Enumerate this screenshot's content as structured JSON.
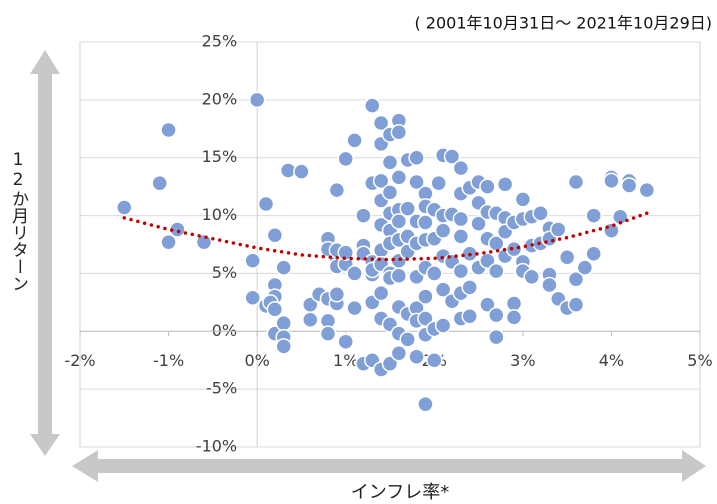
{
  "chart_data": {
    "type": "scatter",
    "subtitle": "( 2001年10月31日～ 2021年10月29日)",
    "x_label": "インフレ率*",
    "y_label": "12か月リターン",
    "color": "#7f9fd6",
    "grid": true,
    "xlim": [
      -2,
      5
    ],
    "ylim": [
      -10,
      25
    ],
    "xticks": [
      {
        "value": -2,
        "label": "-2%"
      },
      {
        "value": -1,
        "label": "-1%"
      },
      {
        "value": 0,
        "label": "0%"
      },
      {
        "value": 1,
        "label": "1%"
      },
      {
        "value": 2,
        "label": "2%"
      },
      {
        "value": 3,
        "label": "3%"
      },
      {
        "value": 4,
        "label": "4%"
      },
      {
        "value": 5,
        "label": "5%"
      }
    ],
    "yticks": [
      {
        "value": -10,
        "label": "-10%"
      },
      {
        "value": -5,
        "label": "-5%"
      },
      {
        "value": 0,
        "label": "0%"
      },
      {
        "value": 5,
        "label": "5%"
      },
      {
        "value": 10,
        "label": "10%"
      },
      {
        "value": 15,
        "label": "15%"
      },
      {
        "value": 20,
        "label": "20%"
      },
      {
        "value": 25,
        "label": "25%"
      }
    ],
    "x": [
      -1.5,
      -1.1,
      -1.0,
      -1.0,
      -0.9,
      -0.6,
      0.0,
      -0.05,
      -0.05,
      0.1,
      0.1,
      0.2,
      0.2,
      0.2,
      0.2,
      0.15,
      0.3,
      0.3,
      0.3,
      0.3,
      0.2,
      0.35,
      0.5,
      0.6,
      0.6,
      0.7,
      0.8,
      0.8,
      0.8,
      0.8,
      0.8,
      0.9,
      0.9,
      0.9,
      0.9,
      0.9,
      0.9,
      1.0,
      1.0,
      1.0,
      1.0,
      1.1,
      1.1,
      1.1,
      1.2,
      1.2,
      1.2,
      1.3,
      1.3,
      1.3,
      1.3,
      1.3,
      1.3,
      1.2,
      1.3,
      1.4,
      1.4,
      1.4,
      1.4,
      1.4,
      1.4,
      1.4,
      1.4,
      1.4,
      1.4,
      1.5,
      1.5,
      1.5,
      1.5,
      1.5,
      1.5,
      1.5,
      1.5,
      1.5,
      1.5,
      1.6,
      1.6,
      1.6,
      1.6,
      1.6,
      1.6,
      1.6,
      1.6,
      1.6,
      1.6,
      1.6,
      1.7,
      1.7,
      1.7,
      1.7,
      1.7,
      1.7,
      1.8,
      1.8,
      1.8,
      1.8,
      1.8,
      1.8,
      1.8,
      1.8,
      1.9,
      1.9,
      1.9,
      1.9,
      1.9,
      1.9,
      1.9,
      1.9,
      1.9,
      2.0,
      2.0,
      2.0,
      2.0,
      2.0,
      2.05,
      2.1,
      2.1,
      2.1,
      2.1,
      2.1,
      2.1,
      2.2,
      2.2,
      2.2,
      2.2,
      2.3,
      2.3,
      2.3,
      2.3,
      2.3,
      2.3,
      2.3,
      2.4,
      2.4,
      2.4,
      2.4,
      2.5,
      2.5,
      2.5,
      2.5,
      2.6,
      2.6,
      2.6,
      2.6,
      2.6,
      2.7,
      2.7,
      2.7,
      2.7,
      2.7,
      2.8,
      2.8,
      2.8,
      2.8,
      2.9,
      2.9,
      2.9,
      2.9,
      3.0,
      3.0,
      3.0,
      3.0,
      3.1,
      3.1,
      3.1,
      3.2,
      3.2,
      3.3,
      3.3,
      3.3,
      3.3,
      3.4,
      3.4,
      3.5,
      3.5,
      3.6,
      3.6,
      3.6,
      3.7,
      3.8,
      3.8,
      4.0,
      4.0,
      4.0,
      4.1,
      4.2,
      4.2,
      4.4
    ],
    "values": [
      10.7,
      12.8,
      17.4,
      7.7,
      8.8,
      7.7,
      20.0,
      6.1,
      2.9,
      11.0,
      2.2,
      8.3,
      4.0,
      3.0,
      -0.2,
      2.5,
      5.5,
      0.7,
      -0.5,
      -1.3,
      1.9,
      13.9,
      13.8,
      2.3,
      1.0,
      3.2,
      0.9,
      2.8,
      8.0,
      -0.2,
      7.1,
      6.3,
      5.6,
      7.0,
      12.2,
      2.4,
      3.2,
      14.9,
      5.8,
      -0.9,
      6.8,
      16.5,
      2.0,
      5.0,
      10.0,
      7.4,
      6.7,
      19.5,
      12.8,
      4.9,
      6.0,
      5.3,
      2.5,
      -2.8,
      -2.5,
      18.0,
      16.2,
      13.0,
      11.3,
      9.2,
      7.0,
      5.8,
      3.3,
      1.1,
      -3.3,
      17.0,
      14.6,
      12.0,
      10.2,
      8.7,
      7.6,
      5.0,
      4.6,
      0.6,
      -2.8,
      18.2,
      17.2,
      13.3,
      10.5,
      9.5,
      7.9,
      6.1,
      4.8,
      2.1,
      -0.2,
      -1.9,
      14.8,
      10.6,
      8.2,
      6.9,
      1.5,
      -0.7,
      15.0,
      12.9,
      9.5,
      7.6,
      4.7,
      2.0,
      0.9,
      -2.2,
      11.9,
      10.8,
      9.4,
      7.9,
      5.5,
      3.0,
      1.1,
      -0.3,
      -6.3,
      10.5,
      8.0,
      5.0,
      -2.5,
      0.2,
      12.8,
      15.2,
      10.0,
      8.7,
      6.5,
      3.6,
      0.5,
      15.1,
      10.1,
      6.0,
      2.6,
      14.1,
      11.9,
      9.7,
      8.2,
      5.2,
      3.3,
      1.1,
      12.4,
      6.7,
      3.8,
      1.3,
      12.9,
      11.1,
      9.3,
      5.5,
      12.5,
      10.3,
      8.0,
      6.1,
      2.3,
      10.2,
      7.6,
      5.2,
      1.4,
      -0.5,
      12.7,
      9.8,
      8.6,
      6.5,
      9.4,
      7.1,
      2.4,
      1.2,
      11.4,
      9.7,
      6.0,
      5.2,
      9.9,
      7.4,
      4.7,
      10.2,
      7.6,
      8.9,
      8.0,
      4.9,
      4.0,
      8.8,
      2.8,
      6.4,
      2.0,
      12.9,
      4.5,
      2.3,
      5.5,
      10.0,
      6.7,
      13.3,
      13.0,
      8.7,
      9.9,
      13.0,
      12.6,
      12.2
    ],
    "trend": {
      "color": "#c00000",
      "x": [
        -1.5,
        -1,
        -0.5,
        0,
        0.5,
        1,
        1.5,
        2,
        2.5,
        3,
        3.5,
        4,
        4.4
      ],
      "values": [
        9.8,
        8.8,
        8.0,
        7.2,
        6.6,
        6.3,
        6.2,
        6.3,
        6.7,
        7.3,
        8.1,
        9.1,
        10.2
      ]
    }
  }
}
